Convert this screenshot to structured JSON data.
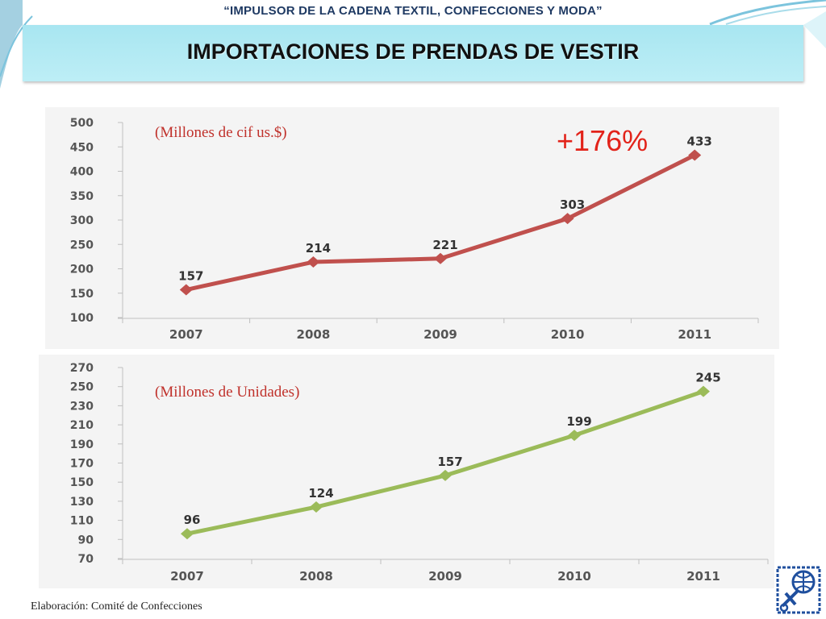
{
  "slide": {
    "top_title": "“IMPULSOR DE LA CADENA TEXTIL, CONFECCIONES Y MODA”",
    "title": "IMPORTACIONES DE PRENDAS DE VESTIR",
    "footer": "Elaboración: Comité de Confecciones"
  },
  "colors": {
    "banner": "#a8e6f1",
    "series_1": "#c0504d",
    "series_2": "#9bbb59",
    "growth_note": "#e2231a"
  },
  "chart_data": [
    {
      "type": "line",
      "title": "",
      "unit_note": "(Millones de cif us.$)",
      "growth_note": "+176%",
      "categories": [
        "2007",
        "2008",
        "2009",
        "2010",
        "2011"
      ],
      "series": [
        {
          "values": [
            157,
            214,
            221,
            303,
            433
          ],
          "color": "#c0504d"
        }
      ],
      "data_labels": [
        "157",
        "214",
        "221",
        "303",
        "433"
      ],
      "ylim": [
        100,
        500
      ],
      "yticks": [
        100,
        150,
        200,
        250,
        300,
        350,
        400,
        450,
        500
      ],
      "grid": false,
      "legend": "none"
    },
    {
      "type": "line",
      "title": "",
      "unit_note": "(Millones de Unidades)",
      "categories": [
        "2007",
        "2008",
        "2009",
        "2010",
        "2011"
      ],
      "series": [
        {
          "values": [
            96,
            124,
            157,
            199,
            245
          ],
          "color": "#9bbb59"
        }
      ],
      "data_labels": [
        "96",
        "124",
        "157",
        "199",
        "245"
      ],
      "ylim": [
        70,
        270
      ],
      "yticks": [
        70,
        90,
        110,
        130,
        150,
        170,
        190,
        210,
        230,
        250,
        270
      ],
      "grid": false,
      "legend": "none"
    }
  ]
}
